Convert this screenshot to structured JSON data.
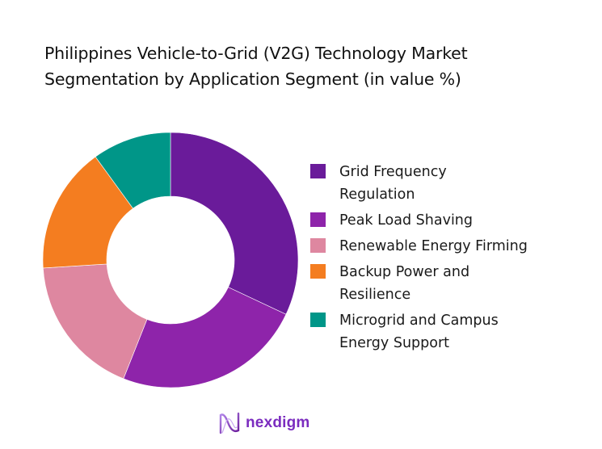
{
  "title": {
    "line1": "Philippines Vehicle-to-Grid (V2G) Technology Market",
    "line2": "Segmentation by Application Segment (in value %)"
  },
  "legend": {
    "items": [
      {
        "label_line1": "Grid Frequency",
        "label_line2": "Regulation",
        "color": "#6A1B9A"
      },
      {
        "label_line1": "Peak Load Shaving",
        "label_line2": "",
        "color": "#8E24AA"
      },
      {
        "label_line1": "Renewable Energy Firming",
        "label_line2": "",
        "color": "#DE87A0"
      },
      {
        "label_line1": "Backup Power and",
        "label_line2": "Resilience",
        "color": "#F47D20"
      },
      {
        "label_line1": "Microgrid and Campus",
        "label_line2": "Energy Support",
        "color": "#009688"
      }
    ]
  },
  "logo": {
    "text": "nexdigm",
    "color": "#7B2CBF"
  },
  "chart_data": {
    "type": "pie",
    "subtype": "donut",
    "title": "Philippines Vehicle-to-Grid (V2G) Technology Market Segmentation by Application Segment (in value %)",
    "categories": [
      "Grid Frequency Regulation",
      "Peak Load Shaving",
      "Renewable Energy Firming",
      "Backup Power and Resilience",
      "Microgrid and Campus Energy Support"
    ],
    "values": [
      32,
      24,
      18,
      16,
      10
    ],
    "colors": [
      "#6A1B9A",
      "#8E24AA",
      "#DE87A0",
      "#F47D20",
      "#009688"
    ],
    "unit": "%",
    "start_angle": "12 o'clock, clockwise",
    "legend_position": "right",
    "data_labels": false
  }
}
